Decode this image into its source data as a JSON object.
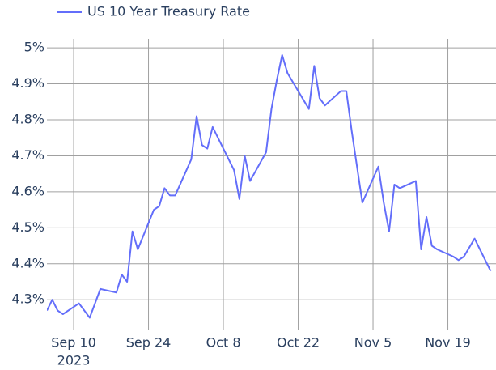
{
  "chart_data": {
    "type": "line",
    "series": [
      {
        "name": "US 10 Year Treasury Rate",
        "color": "#636efa",
        "x": [
          "2023-09-05",
          "2023-09-06",
          "2023-09-07",
          "2023-09-08",
          "2023-09-11",
          "2023-09-13",
          "2023-09-15",
          "2023-09-18",
          "2023-09-19",
          "2023-09-20",
          "2023-09-21",
          "2023-09-22",
          "2023-09-25",
          "2023-09-26",
          "2023-09-27",
          "2023-09-28",
          "2023-09-29",
          "2023-10-02",
          "2023-10-03",
          "2023-10-04",
          "2023-10-05",
          "2023-10-06",
          "2023-10-10",
          "2023-10-11",
          "2023-10-12",
          "2023-10-13",
          "2023-10-16",
          "2023-10-17",
          "2023-10-18",
          "2023-10-19",
          "2023-10-20",
          "2023-10-24",
          "2023-10-25",
          "2023-10-26",
          "2023-10-27",
          "2023-10-30",
          "2023-10-31",
          "2023-11-01",
          "2023-11-02",
          "2023-11-03",
          "2023-11-06",
          "2023-11-07",
          "2023-11-08",
          "2023-11-09",
          "2023-11-10",
          "2023-11-13",
          "2023-11-14",
          "2023-11-15",
          "2023-11-16",
          "2023-11-17",
          "2023-11-20",
          "2023-11-21",
          "2023-11-22",
          "2023-11-24",
          "2023-11-27"
        ],
        "values": [
          4.27,
          4.3,
          4.27,
          4.26,
          4.29,
          4.25,
          4.33,
          4.32,
          4.37,
          4.35,
          4.49,
          4.44,
          4.55,
          4.56,
          4.61,
          4.59,
          4.59,
          4.69,
          4.81,
          4.73,
          4.72,
          4.78,
          4.66,
          4.58,
          4.7,
          4.63,
          4.71,
          4.83,
          4.91,
          4.98,
          4.93,
          4.83,
          4.95,
          4.86,
          4.84,
          4.88,
          4.88,
          4.77,
          4.67,
          4.57,
          4.67,
          4.57,
          4.49,
          4.62,
          4.61,
          4.63,
          4.44,
          4.53,
          4.45,
          4.44,
          4.42,
          4.41,
          4.42,
          4.47,
          4.38
        ]
      }
    ],
    "xlim": [
      "2023-09-05",
      "2023-11-28"
    ],
    "xticks": [
      {
        "value": "2023-09-10",
        "label": "Sep 10",
        "sublabel": "2023"
      },
      {
        "value": "2023-09-24",
        "label": "Sep 24"
      },
      {
        "value": "2023-10-08",
        "label": "Oct 8"
      },
      {
        "value": "2023-10-22",
        "label": "Oct 22"
      },
      {
        "value": "2023-11-05",
        "label": "Nov 5"
      },
      {
        "value": "2023-11-19",
        "label": "Nov 19"
      }
    ],
    "ylim": [
      4.215,
      5.025
    ],
    "yticks": [
      {
        "value": 4.3,
        "label": "4.3%"
      },
      {
        "value": 4.4,
        "label": "4.4%"
      },
      {
        "value": 4.5,
        "label": "4.5%"
      },
      {
        "value": 4.6,
        "label": "4.6%"
      },
      {
        "value": 4.7,
        "label": "4.7%"
      },
      {
        "value": 4.8,
        "label": "4.8%"
      },
      {
        "value": 4.9,
        "label": "4.9%"
      },
      {
        "value": 5,
        "label": "5%"
      }
    ],
    "grid": true,
    "legend": "top-left"
  }
}
